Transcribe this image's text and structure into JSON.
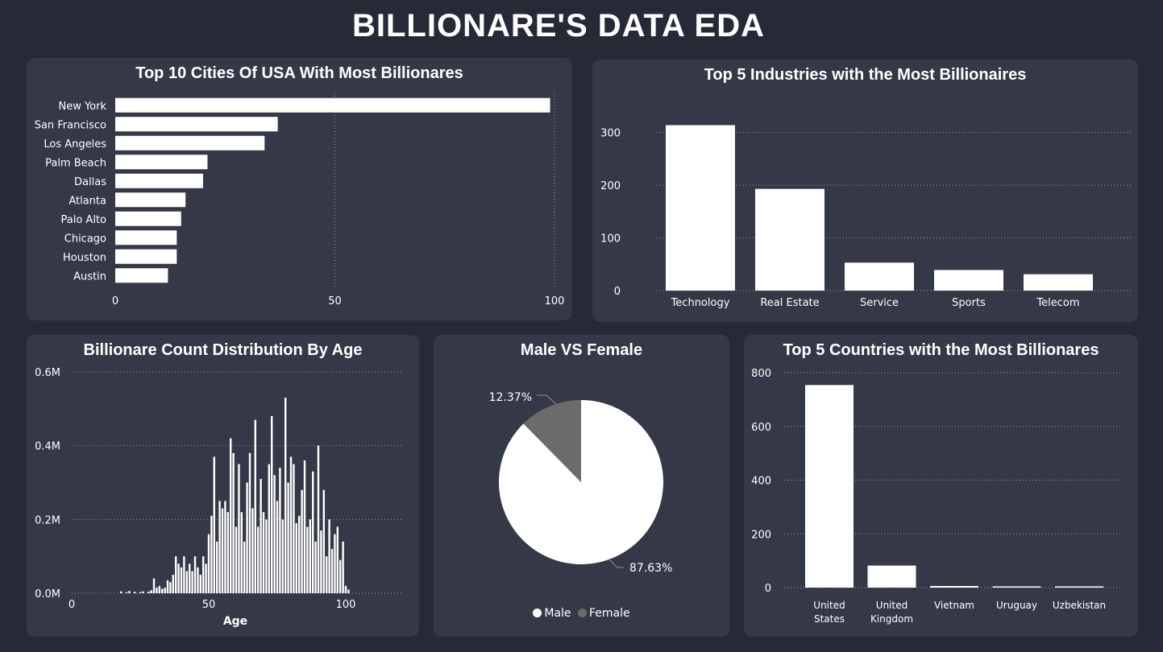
{
  "dashboard": {
    "title": "BILLIONARE'S DATA EDA"
  },
  "colors": {
    "bar": "#ffffff",
    "background": "#262a36",
    "panel": "#353947",
    "male": "#ffffff",
    "female": "#6b6b6b",
    "grid": "#9aa0ad"
  },
  "chart_data": [
    {
      "id": "cities",
      "type": "bar",
      "orientation": "horizontal",
      "title": "Top 10 Cities Of USA With Most Billionares",
      "categories": [
        "New York",
        "San Francisco",
        "Los Angeles",
        "Palm Beach",
        "Dallas",
        "Atlanta",
        "Palo Alto",
        "Chicago",
        "Houston",
        "Austin"
      ],
      "values": [
        99,
        37,
        34,
        21,
        20,
        16,
        15,
        14,
        14,
        12
      ],
      "xlim": [
        0,
        100
      ],
      "xticks": [
        "0",
        "50",
        "100"
      ],
      "grid": true
    },
    {
      "id": "industries",
      "type": "bar",
      "title": "Top 5 Industries with the Most Billionaires",
      "categories": [
        "Technology",
        "Real Estate",
        "Service",
        "Sports",
        "Telecom"
      ],
      "values": [
        314,
        193,
        53,
        39,
        31
      ],
      "ylim": [
        0,
        330
      ],
      "yticks": [
        "0",
        "100",
        "200",
        "300"
      ],
      "grid": true
    },
    {
      "id": "age",
      "type": "bar",
      "title": "Billionare Count Distribution By Age",
      "xlabel": "Age",
      "ylim": [
        0,
        0.6
      ],
      "yticks": [
        "0.0M",
        "0.2M",
        "0.4M",
        "0.6M"
      ],
      "xticks": [
        "0",
        "50",
        "100"
      ],
      "x": [
        18,
        20,
        21,
        23,
        25,
        26,
        28,
        29,
        30,
        31,
        32,
        33,
        34,
        35,
        36,
        37,
        38,
        39,
        40,
        41,
        42,
        43,
        44,
        45,
        46,
        47,
        48,
        49,
        50,
        51,
        52,
        53,
        54,
        55,
        56,
        57,
        58,
        59,
        60,
        61,
        62,
        63,
        64,
        65,
        66,
        67,
        68,
        69,
        70,
        71,
        72,
        73,
        74,
        75,
        76,
        77,
        78,
        79,
        80,
        81,
        82,
        83,
        84,
        85,
        86,
        87,
        88,
        89,
        90,
        91,
        92,
        93,
        94,
        95,
        96,
        97,
        98,
        99,
        100,
        101
      ],
      "values": [
        0.005,
        0.003,
        0.006,
        0.004,
        0.003,
        0.005,
        0.004,
        0.008,
        0.04,
        0.015,
        0.02,
        0.012,
        0.015,
        0.035,
        0.03,
        0.05,
        0.1,
        0.08,
        0.07,
        0.1,
        0.06,
        0.08,
        0.06,
        0.1,
        0.07,
        0.05,
        0.1,
        0.08,
        0.16,
        0.21,
        0.37,
        0.14,
        0.25,
        0.23,
        0.25,
        0.22,
        0.42,
        0.38,
        0.18,
        0.35,
        0.22,
        0.14,
        0.3,
        0.38,
        0.23,
        0.47,
        0.18,
        0.31,
        0.22,
        0.2,
        0.35,
        0.48,
        0.32,
        0.25,
        0.34,
        0.2,
        0.53,
        0.3,
        0.37,
        0.35,
        0.19,
        0.21,
        0.28,
        0.36,
        0.18,
        0.2,
        0.33,
        0.14,
        0.4,
        0.17,
        0.28,
        0.1,
        0.2,
        0.12,
        0.16,
        0.18,
        0.09,
        0.14,
        0.02,
        0.01
      ]
    },
    {
      "id": "gender",
      "type": "pie",
      "title": "Male VS Female",
      "categories": [
        "Male",
        "Female"
      ],
      "values": [
        87.63,
        12.37
      ],
      "labels": [
        "87.63%",
        "12.37%"
      ],
      "legend": "bottom-center"
    },
    {
      "id": "countries",
      "type": "bar",
      "title": "Top 5 Countries with the Most Billionares",
      "categories": [
        [
          "United",
          "States"
        ],
        [
          "United",
          "Kingdom"
        ],
        [
          "Vietnam"
        ],
        [
          "Uruguay"
        ],
        [
          "Uzbekistan"
        ]
      ],
      "values": [
        754,
        82,
        6,
        3,
        2
      ],
      "ylim": [
        0,
        800
      ],
      "yticks": [
        "0",
        "200",
        "400",
        "600",
        "800"
      ],
      "grid": true
    }
  ]
}
